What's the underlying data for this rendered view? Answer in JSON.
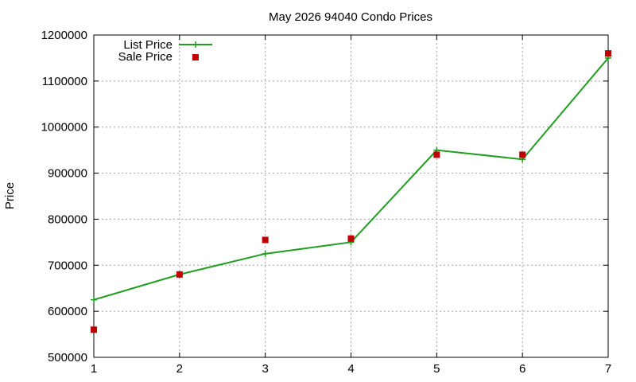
{
  "chart_data": {
    "type": "line",
    "title": "May 2026 94040 Condo Prices",
    "xlabel": "",
    "ylabel": "Price",
    "xlim": [
      1,
      7
    ],
    "ylim": [
      500000,
      1200000
    ],
    "x_ticks": [
      "1",
      "2",
      "3",
      "4",
      "5",
      "6",
      "7"
    ],
    "y_ticks": [
      "500000",
      "600000",
      "700000",
      "800000",
      "900000",
      "1000000",
      "1100000",
      "1200000"
    ],
    "grid": true,
    "legend_position": "top-left",
    "x": [
      1,
      2,
      3,
      4,
      5,
      6,
      7
    ],
    "series": [
      {
        "name": "List Price",
        "style": "line-with-plus-markers",
        "color": "#1f9e1f",
        "values": [
          625000,
          680000,
          725000,
          750000,
          950000,
          930000,
          1150000
        ]
      },
      {
        "name": "Sale Price",
        "style": "square-markers",
        "color": "#c00000",
        "values": [
          560000,
          680000,
          755000,
          758000,
          940000,
          940000,
          1160000
        ]
      }
    ]
  }
}
